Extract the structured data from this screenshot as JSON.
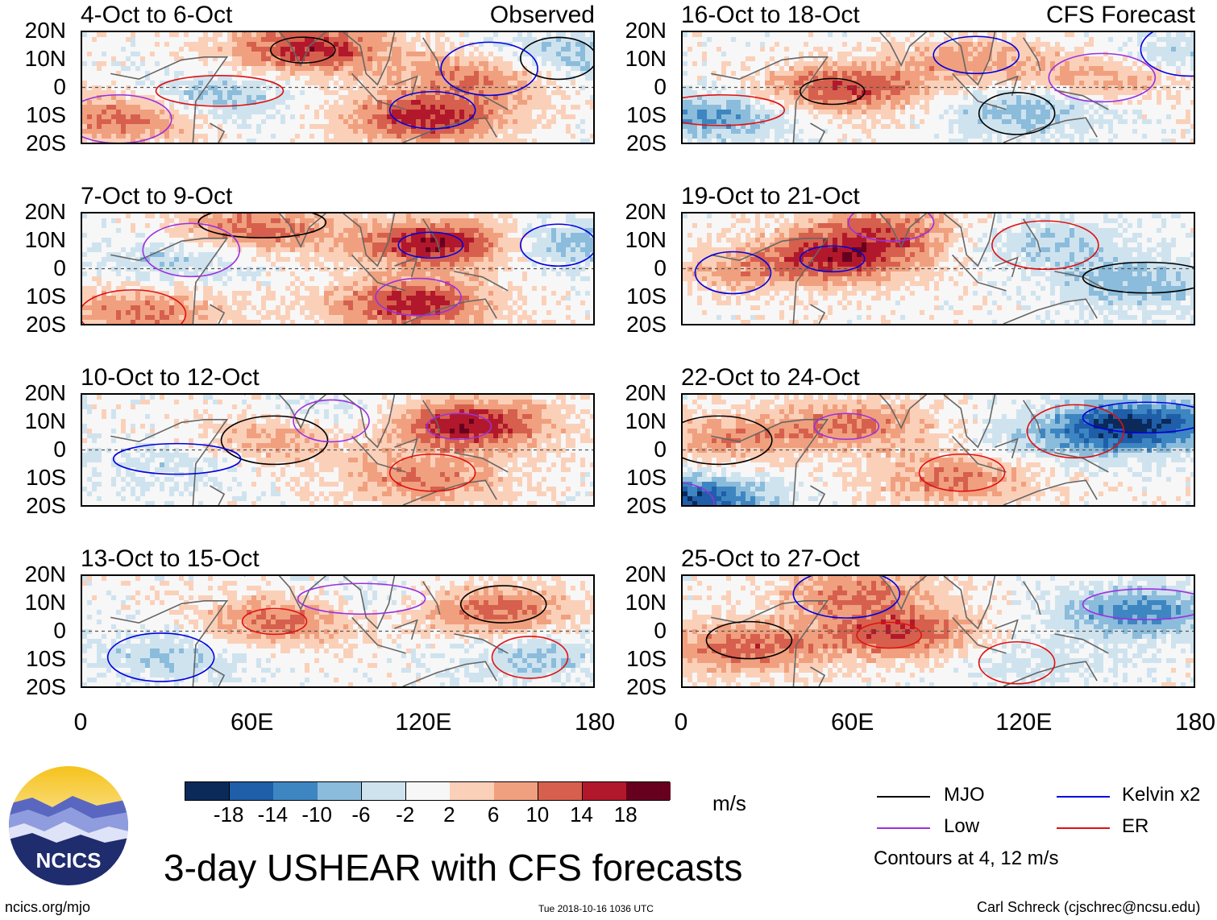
{
  "panels": [
    {
      "title": "4-Oct to 6-Oct",
      "tag": "Observed",
      "col": 0,
      "row": 0
    },
    {
      "title": "7-Oct to 9-Oct",
      "tag": "",
      "col": 0,
      "row": 1
    },
    {
      "title": "10-Oct to 12-Oct",
      "tag": "",
      "col": 0,
      "row": 2
    },
    {
      "title": "13-Oct to 15-Oct",
      "tag": "",
      "col": 0,
      "row": 3
    },
    {
      "title": "16-Oct to 18-Oct",
      "tag": "CFS Forecast",
      "col": 1,
      "row": 0
    },
    {
      "title": "19-Oct to 21-Oct",
      "tag": "",
      "col": 1,
      "row": 1
    },
    {
      "title": "22-Oct to 24-Oct",
      "tag": "",
      "col": 1,
      "row": 2
    },
    {
      "title": "25-Oct to 27-Oct",
      "tag": "",
      "col": 1,
      "row": 3
    }
  ],
  "y_labels": [
    "20N",
    "10N",
    "0",
    "10S",
    "20S"
  ],
  "x_labels": [
    "0",
    "60E",
    "120E",
    "180"
  ],
  "colorbar": {
    "colors": [
      "#0b2a5a",
      "#1f5ea8",
      "#3d86c1",
      "#8bbcdb",
      "#cfe3ef",
      "#f7f7f7",
      "#fbd0b9",
      "#f0a07e",
      "#d6604d",
      "#b2182b",
      "#67001f"
    ],
    "labels": [
      "-18",
      "-14",
      "-10",
      "-6",
      "-2",
      "2",
      "6",
      "10",
      "14",
      "18"
    ],
    "units": "m/s"
  },
  "legend": {
    "items": [
      {
        "label": "MJO",
        "color": "#000000"
      },
      {
        "label": "Kelvin x2",
        "color": "#0000e0"
      },
      {
        "label": "Low",
        "color": "#9b30e0"
      },
      {
        "label": "ER",
        "color": "#e01010"
      }
    ],
    "note": "Contours at 4, 12 m/s"
  },
  "logo": {
    "text": "NCICS"
  },
  "title": "3-day USHEAR with CFS forecasts",
  "footer": {
    "left": "ncics.org/mjo",
    "center": "Tue 2018-10-16 1036 UTC",
    "right": "Carl Schreck (cjschrec@ncsu.edu)"
  },
  "chart_data": {
    "type": "heatmap",
    "title": "3-day USHEAR with CFS forecasts",
    "variable": "USHEAR (m/s)",
    "x_range_deg": [
      0,
      180
    ],
    "y_range_deg": [
      -20,
      20
    ],
    "x_tick_labels": [
      "0",
      "60E",
      "120E",
      "180"
    ],
    "y_tick_labels": [
      "20N",
      "10N",
      "0",
      "10S",
      "20S"
    ],
    "color_levels": [
      -18,
      -14,
      -10,
      -6,
      -2,
      2,
      6,
      10,
      14,
      18
    ],
    "contour_levels": [
      4,
      12
    ],
    "contour_series": [
      "MJO",
      "Kelvin x2",
      "Low",
      "ER"
    ],
    "observed_periods": [
      "4-Oct to 6-Oct",
      "7-Oct to 9-Oct",
      "10-Oct to 12-Oct",
      "13-Oct to 15-Oct"
    ],
    "forecast_periods": [
      "16-Oct to 18-Oct",
      "19-Oct to 21-Oct",
      "22-Oct to 24-Oct",
      "25-Oct to 27-Oct"
    ],
    "anomaly_centers": [
      [
        {
          "lon": 80,
          "lat": 15,
          "v": 16
        },
        {
          "lon": 120,
          "lat": -10,
          "v": 16
        },
        {
          "lon": 15,
          "lat": -10,
          "v": 12
        },
        {
          "lon": 45,
          "lat": -3,
          "v": -8
        },
        {
          "lon": 170,
          "lat": 12,
          "v": -8
        },
        {
          "lon": 140,
          "lat": 5,
          "v": 10
        }
      ],
      [
        {
          "lon": 125,
          "lat": 10,
          "v": 18
        },
        {
          "lon": 115,
          "lat": -12,
          "v": 16
        },
        {
          "lon": 20,
          "lat": -15,
          "v": 10
        },
        {
          "lon": 60,
          "lat": 15,
          "v": 12
        },
        {
          "lon": 170,
          "lat": 10,
          "v": -8
        },
        {
          "lon": 35,
          "lat": 5,
          "v": -6
        }
      ],
      [
        {
          "lon": 135,
          "lat": 10,
          "v": 18
        },
        {
          "lon": 120,
          "lat": -10,
          "v": 10
        },
        {
          "lon": 70,
          "lat": 5,
          "v": 8
        },
        {
          "lon": 30,
          "lat": -5,
          "v": -4
        },
        {
          "lon": 90,
          "lat": 12,
          "v": -4
        }
      ],
      [
        {
          "lon": 70,
          "lat": 5,
          "v": 12
        },
        {
          "lon": 145,
          "lat": 8,
          "v": 12
        },
        {
          "lon": 30,
          "lat": -8,
          "v": -6
        },
        {
          "lon": 95,
          "lat": 10,
          "v": -4
        },
        {
          "lon": 160,
          "lat": -8,
          "v": -6
        }
      ],
      [
        {
          "lon": 55,
          "lat": 0,
          "v": 14
        },
        {
          "lon": 100,
          "lat": 10,
          "v": 8
        },
        {
          "lon": 150,
          "lat": 5,
          "v": 8
        },
        {
          "lon": 10,
          "lat": -10,
          "v": -10
        },
        {
          "lon": 120,
          "lat": -8,
          "v": -8
        },
        {
          "lon": 175,
          "lat": 12,
          "v": -6
        }
      ],
      [
        {
          "lon": 55,
          "lat": 5,
          "v": 14
        },
        {
          "lon": 70,
          "lat": 15,
          "v": 10
        },
        {
          "lon": 130,
          "lat": 10,
          "v": -6
        },
        {
          "lon": 160,
          "lat": -5,
          "v": -8
        },
        {
          "lon": 20,
          "lat": 0,
          "v": 6
        }
      ],
      [
        {
          "lon": 60,
          "lat": 10,
          "v": 10
        },
        {
          "lon": 95,
          "lat": -10,
          "v": 10
        },
        {
          "lon": 15,
          "lat": 5,
          "v": 8
        },
        {
          "lon": 160,
          "lat": 10,
          "v": -18
        },
        {
          "lon": 0,
          "lat": -18,
          "v": -18
        },
        {
          "lon": 135,
          "lat": 5,
          "v": -6
        }
      ],
      [
        {
          "lon": 75,
          "lat": 0,
          "v": 14
        },
        {
          "lon": 20,
          "lat": -5,
          "v": 12
        },
        {
          "lon": 60,
          "lat": 15,
          "v": 10
        },
        {
          "lon": 160,
          "lat": 8,
          "v": -12
        },
        {
          "lon": 120,
          "lat": -10,
          "v": -4
        }
      ]
    ]
  }
}
